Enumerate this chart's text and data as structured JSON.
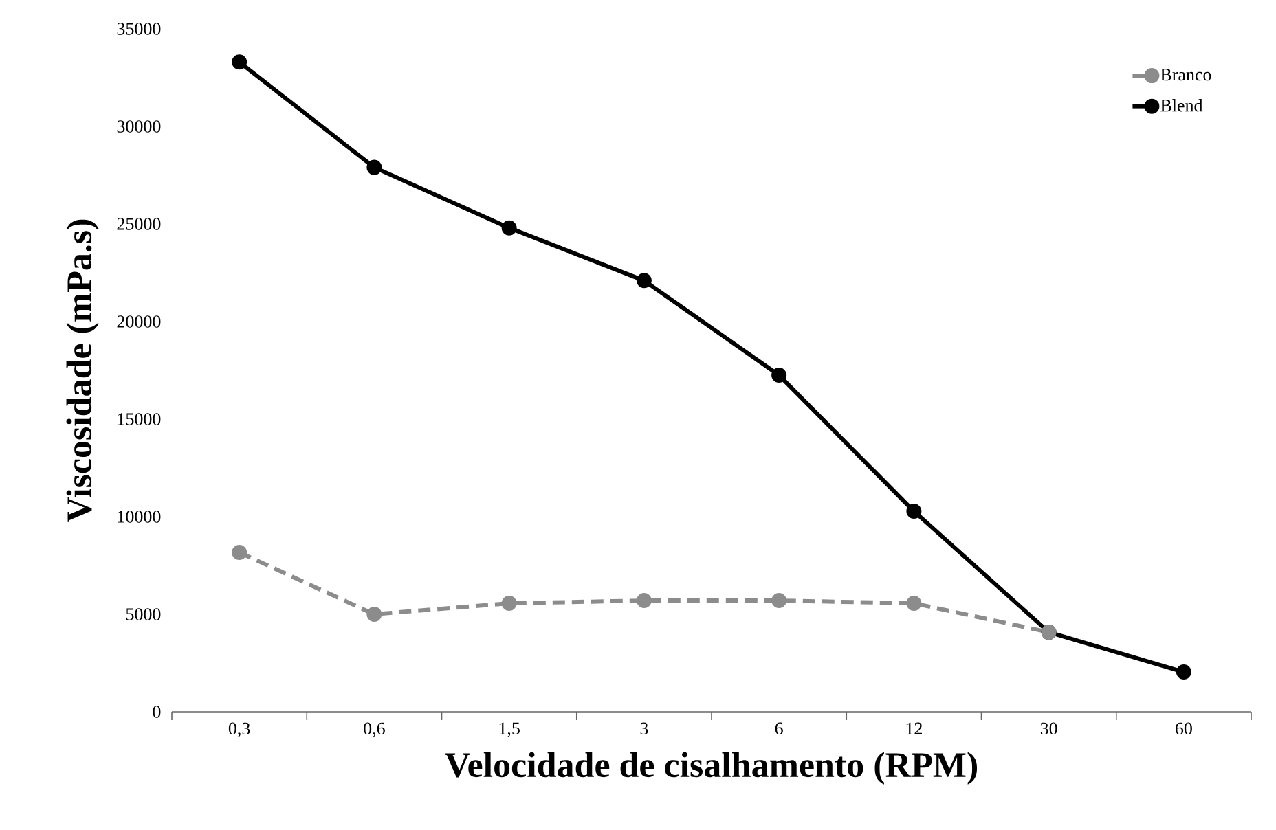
{
  "chart_data": {
    "type": "line",
    "xlabel": "Velocidade de cisalhamento (RPM)",
    "ylabel": "Viscosidade (mPa.s)",
    "categories": [
      "0,3",
      "0,6",
      "1,5",
      "3",
      "6",
      "12",
      "30",
      "60"
    ],
    "series": [
      {
        "name": "Branco",
        "color": "#8c8c8c",
        "line_style": "dashed",
        "values": [
          8170,
          5000,
          5560,
          5700,
          5700,
          5560,
          4080,
          null
        ]
      },
      {
        "name": "Blend",
        "color": "#000000",
        "line_style": "solid",
        "values": [
          33300,
          27900,
          24800,
          22100,
          17250,
          10280,
          4080,
          2040
        ]
      }
    ],
    "ylim": [
      0,
      35000
    ],
    "yticks": [
      0,
      5000,
      10000,
      15000,
      20000,
      25000,
      30000,
      35000
    ],
    "marker": "circle",
    "grid": false,
    "legend": "top right"
  }
}
